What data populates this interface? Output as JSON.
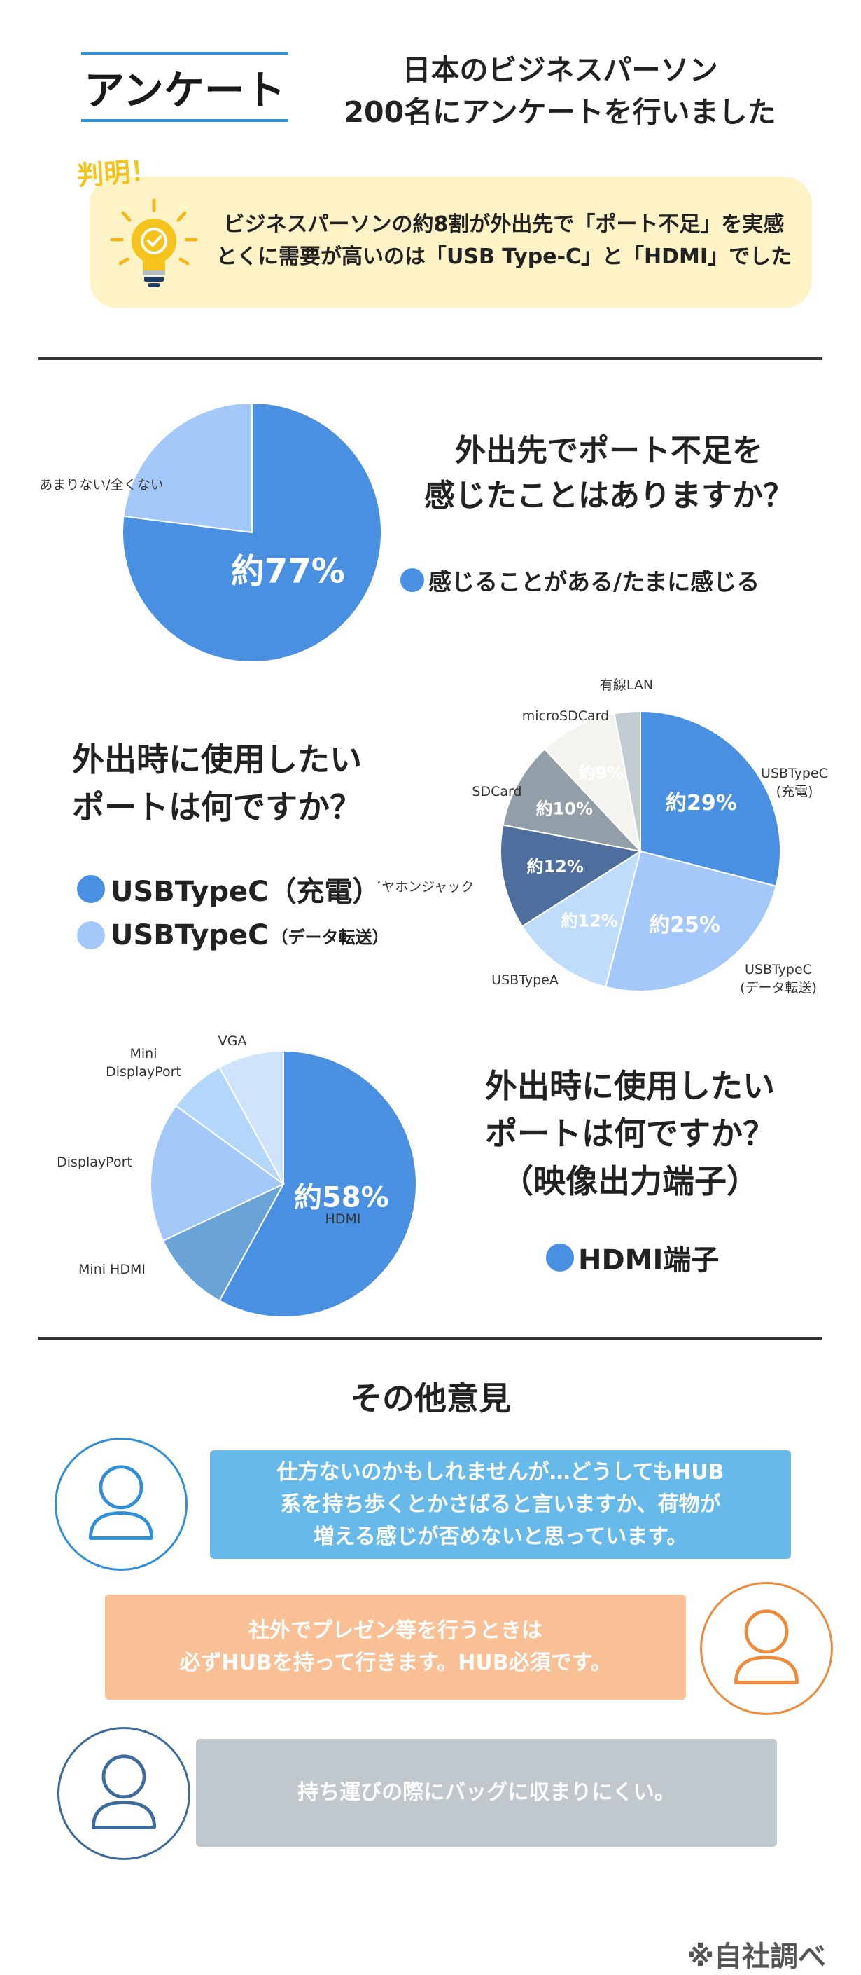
{
  "header": {
    "title": "アンケート",
    "subtitle_line1": "日本のビジネスパーソン",
    "subtitle_line2": "200名にアンケートを行いました"
  },
  "finding": {
    "tag": "判明！",
    "line1": "ビジネスパーソンの約8割が外出先で「ポート不足」を実感",
    "line2": "とくに需要が高いのは「USB Type-C」と「HDMI」でした",
    "icon": "lightbulb-icon"
  },
  "colors": {
    "accent": "#2f8fd8",
    "blue_main": "#4a90e2",
    "blue_light": "#a5c8fa",
    "steel_dark": "#4e6f9e",
    "gray_blue": "#929ea8",
    "off_white": "#f4f3ee",
    "pale_gray": "#c3ccd3",
    "light_blue2": "#c0dcfb",
    "mid_blue": "#6aa3d8",
    "bubble1": "#67b9e9",
    "bubble2": "#f9bf95",
    "bubble3": "#c0c7cd",
    "avatar1": "#2f8fd8",
    "avatar2": "#ee8a3c",
    "avatar3": "#3e6b9e"
  },
  "q1": {
    "title_line1": "外出先でポート不足を",
    "title_line2": "感じたことはありますか？",
    "legend": "感じることがある/たまに感じる"
  },
  "q2": {
    "title_line1": "外出時に使用したい",
    "title_line2": "ポートは何ですか？",
    "legend1": "USBTypeC（充電）",
    "legend2_main": "USBTypeC",
    "legend2_small": "（データ転送）"
  },
  "q3": {
    "title_line1": "外出時に使用したい",
    "title_line2": "ポートは何ですか？",
    "title_line3": "（映像出力端子）",
    "legend": "HDMI端子"
  },
  "chart_data": [
    {
      "type": "pie",
      "slices": [
        {
          "name": "感じることがある/たまに感じる",
          "value": 77,
          "value_label": "約77%",
          "color": "#4a90e2"
        },
        {
          "name": "あまりない/全くない",
          "value": 23,
          "value_label": "",
          "color": "#a5c8fa"
        }
      ]
    },
    {
      "type": "pie",
      "slices": [
        {
          "name": "USBTypeC\n(充電)",
          "value": 29,
          "value_label": "約29%",
          "color": "#4a90e2"
        },
        {
          "name": "USBTypeC\n(データ転送)",
          "value": 25,
          "value_label": "約25%",
          "color": "#a5c8fa"
        },
        {
          "name": "USBTypeA",
          "value": 12,
          "value_label": "約12%",
          "color": "#c0dcfb"
        },
        {
          "name": "イヤホンジャック",
          "value": 12,
          "value_label": "約12%",
          "color": "#4e6f9e"
        },
        {
          "name": "SDCard",
          "value": 10,
          "value_label": "約10%",
          "color": "#929ea8"
        },
        {
          "name": "microSDCard",
          "value": 9,
          "value_label": "約9%",
          "color": "#f4f3ee"
        },
        {
          "name": "有線LAN",
          "value": 3,
          "value_label": "",
          "color": "#c3ccd3"
        }
      ]
    },
    {
      "type": "pie",
      "slices": [
        {
          "name": "HDMI",
          "value": 58,
          "value_label": "約58%",
          "color": "#4a90e2"
        },
        {
          "name": "Mini HDMI",
          "value": 10,
          "value_label": "",
          "color": "#6aa3d8"
        },
        {
          "name": "DisplayPort",
          "value": 17,
          "value_label": "",
          "color": "#a5c8fa"
        },
        {
          "name": "Mini\nDisplayPort",
          "value": 7,
          "value_label": "",
          "color": "#b3d6fb"
        },
        {
          "name": "VGA",
          "value": 8,
          "value_label": "",
          "color": "#cfe3fc"
        }
      ]
    }
  ],
  "others": {
    "title": "その他意見",
    "comments": [
      "仕方ないのかもしれませんが…どうしてもHUB\n系を持ち歩くとかさばると言いますか、荷物が\n増える感じが否めないと思っています。",
      "社外でプレゼン等を行うときは\n必ずHUBを持って行きます。HUB必須です。",
      "持ち運びの際にバッグに収まりにくい。"
    ]
  },
  "footnote": "※自社調べ"
}
